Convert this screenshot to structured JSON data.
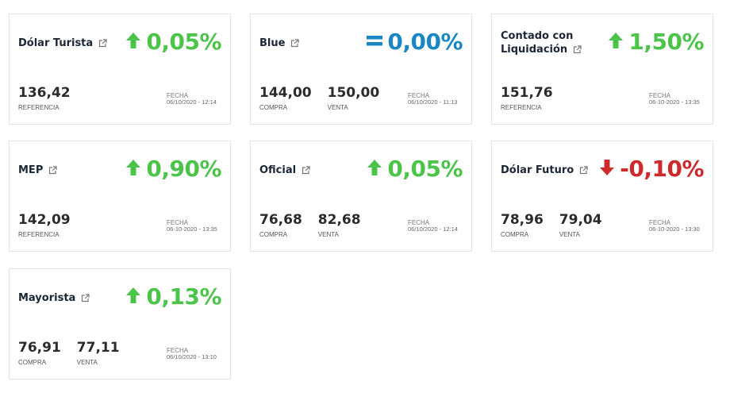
{
  "colors": {
    "up": "#4cc449",
    "equal": "#1a86c2",
    "down": "#cf2a2b"
  },
  "fecha_label": "FECHA",
  "cards": [
    {
      "title": "Dólar Turista",
      "trend": "up",
      "change": "0,05%",
      "values": [
        {
          "value": "136,42",
          "label": "REFERENCIA"
        }
      ],
      "date": "06/10/2020 - 12:14"
    },
    {
      "title": "Blue",
      "trend": "equal",
      "change": "0,00%",
      "values": [
        {
          "value": "144,00",
          "label": "COMPRA"
        },
        {
          "value": "150,00",
          "label": "VENTA"
        }
      ],
      "date": "06/10/2020 - 11:13"
    },
    {
      "title": "Contado con Liquidación",
      "trend": "up",
      "change": "1,50%",
      "values": [
        {
          "value": "151,76",
          "label": "REFERENCIA"
        }
      ],
      "date": "06-10-2020 - 13:35"
    },
    {
      "title": "MEP",
      "trend": "up",
      "change": "0,90%",
      "values": [
        {
          "value": "142,09",
          "label": "REFERENCIA"
        }
      ],
      "date": "06-10-2020 - 13:35"
    },
    {
      "title": "Oficial",
      "trend": "up",
      "change": "0,05%",
      "values": [
        {
          "value": "76,68",
          "label": "COMPRA"
        },
        {
          "value": "82,68",
          "label": "VENTA"
        }
      ],
      "date": "06/10/2020 - 12:14"
    },
    {
      "title": "Dólar Futuro",
      "trend": "down",
      "change": "-0,10%",
      "values": [
        {
          "value": "78,96",
          "label": "COMPRA"
        },
        {
          "value": "79,04",
          "label": "VENTA"
        }
      ],
      "date": "06-10-2020 - 13:30"
    },
    {
      "title": "Mayorista",
      "trend": "up",
      "change": "0,13%",
      "values": [
        {
          "value": "76,91",
          "label": "COMPRA"
        },
        {
          "value": "77,11",
          "label": "VENTA"
        }
      ],
      "date": "06/10/2020 - 13:10"
    }
  ]
}
